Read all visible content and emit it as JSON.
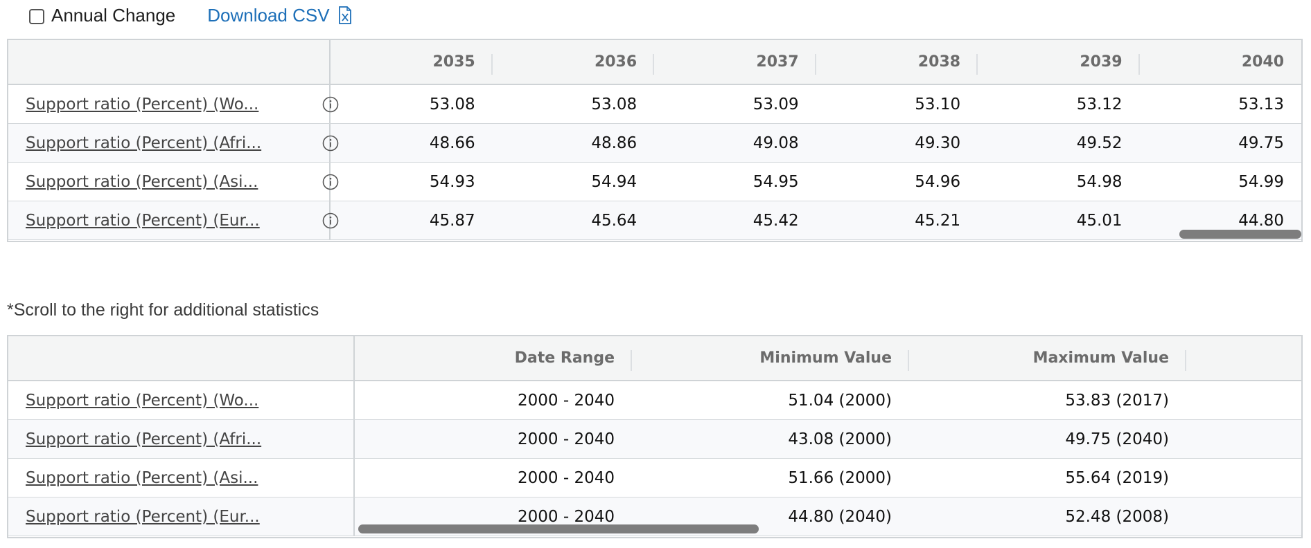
{
  "toolbar": {
    "annual_change_label": "Annual Change",
    "download_label": "Download CSV",
    "download_icon": "csv-file-icon"
  },
  "table1": {
    "years": [
      "2035",
      "2036",
      "2037",
      "2038",
      "2039",
      "2040"
    ],
    "rows": [
      {
        "label": "Support ratio (Percent) (Wo...",
        "values": [
          "53.08",
          "53.08",
          "53.09",
          "53.10",
          "53.12",
          "53.13"
        ]
      },
      {
        "label": "Support ratio (Percent) (Afri...",
        "values": [
          "48.66",
          "48.86",
          "49.08",
          "49.30",
          "49.52",
          "49.75"
        ]
      },
      {
        "label": "Support ratio (Percent) (Asi...",
        "values": [
          "54.93",
          "54.94",
          "54.95",
          "54.96",
          "54.98",
          "54.99"
        ]
      },
      {
        "label": "Support ratio (Percent) (Eur...",
        "values": [
          "45.87",
          "45.64",
          "45.42",
          "45.21",
          "45.01",
          "44.80"
        ]
      }
    ]
  },
  "note": "*Scroll to the right for additional statistics",
  "table2": {
    "headers": [
      "Date Range",
      "Minimum Value",
      "Maximum Value"
    ],
    "rows": [
      {
        "label": "Support ratio (Percent) (Wo...",
        "values": [
          "2000 - 2040",
          "51.04 (2000)",
          "53.83 (2017)"
        ]
      },
      {
        "label": "Support ratio (Percent) (Afri...",
        "values": [
          "2000 - 2040",
          "43.08 (2000)",
          "49.75 (2040)"
        ]
      },
      {
        "label": "Support ratio (Percent) (Asi...",
        "values": [
          "2000 - 2040",
          "51.66 (2000)",
          "55.64 (2019)"
        ]
      },
      {
        "label": "Support ratio (Percent) (Eur...",
        "values": [
          "2000 - 2040",
          "44.80 (2040)",
          "52.48 (2008)"
        ]
      }
    ]
  }
}
